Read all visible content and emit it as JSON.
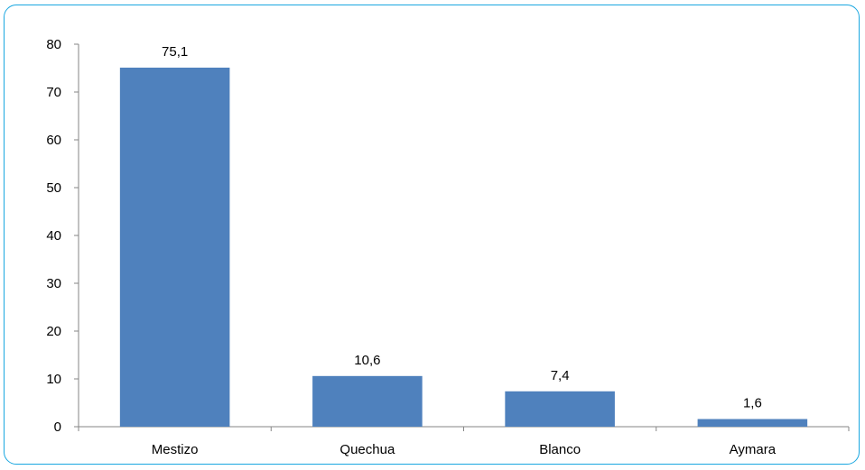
{
  "chart_data": {
    "type": "bar",
    "categories": [
      "Mestizo",
      "Quechua",
      "Blanco",
      "Aymara"
    ],
    "values": [
      75.1,
      10.6,
      7.4,
      1.6
    ],
    "data_labels": [
      "75,1",
      "10,6",
      "7,4",
      "1,6"
    ],
    "title": "",
    "xlabel": "",
    "ylabel": "",
    "ylim": [
      0,
      80
    ],
    "yticks": [
      "0",
      "10",
      "20",
      "30",
      "40",
      "50",
      "60",
      "70",
      "80"
    ],
    "grid": false,
    "legend": "none",
    "bar_color": "#4f81bd",
    "axis_color": "#868686",
    "frame_color": "#1aa7e0"
  }
}
